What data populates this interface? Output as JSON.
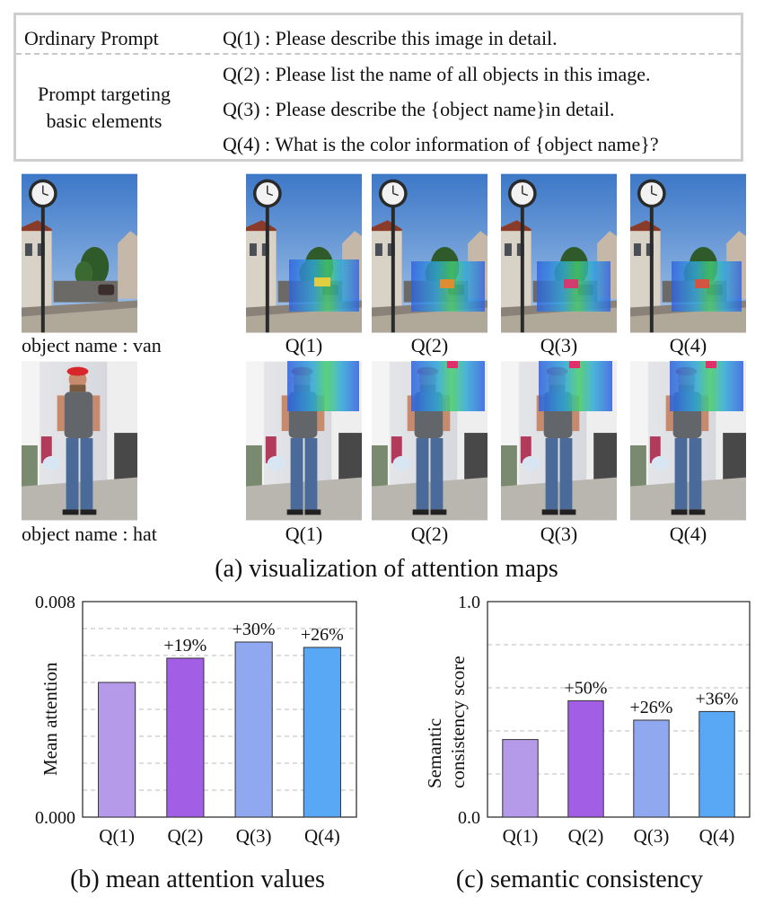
{
  "prompts": {
    "ordinary_label": "Ordinary Prompt",
    "targeted_label_line1": "Prompt targeting",
    "targeted_label_line2": "basic elements",
    "q1": "Q(1) : Please describe this image in detail.",
    "q2": "Q(2) : Please list the name of all objects in this image.",
    "q3": "Q(3) : Please describe the {object name}in detail.",
    "q4": "Q(4) : What is the color information of {object name}?"
  },
  "panel_a": {
    "row1_caption": "object name : van",
    "row2_caption": "object name : hat",
    "columns": [
      "Q(1)",
      "Q(2)",
      "Q(3)",
      "Q(4)"
    ],
    "title": "(a) visualization of attention maps"
  },
  "chart_data": [
    {
      "type": "bar",
      "title": "(b) mean attention values",
      "ylabel": "Mean attention",
      "categories": [
        "Q(1)",
        "Q(2)",
        "Q(3)",
        "Q(4)"
      ],
      "values": [
        0.005,
        0.0059,
        0.0065,
        0.0063
      ],
      "bar_labels": [
        "",
        "+19%",
        "+30%",
        "+26%"
      ],
      "colors": [
        "#b49ae8",
        "#a35ee6",
        "#8fa8ef",
        "#58a8f5"
      ],
      "ylim": [
        0.0,
        0.008
      ],
      "yticks": [
        "0.000",
        "0.008"
      ],
      "grid": "dashed horizontal"
    },
    {
      "type": "bar",
      "title": "(c) semantic consistency",
      "ylabel_line1": "Semantic",
      "ylabel_line2": "consistency score",
      "categories": [
        "Q(1)",
        "Q(2)",
        "Q(3)",
        "Q(4)"
      ],
      "values": [
        0.36,
        0.54,
        0.45,
        0.49
      ],
      "bar_labels": [
        "",
        "+50%",
        "+26%",
        "+36%"
      ],
      "colors": [
        "#b49ae8",
        "#a35ee6",
        "#8fa8ef",
        "#58a8f5"
      ],
      "ylim": [
        0.0,
        1.0
      ],
      "yticks": [
        "0.0",
        "1.0"
      ],
      "grid": "dashed horizontal"
    }
  ]
}
